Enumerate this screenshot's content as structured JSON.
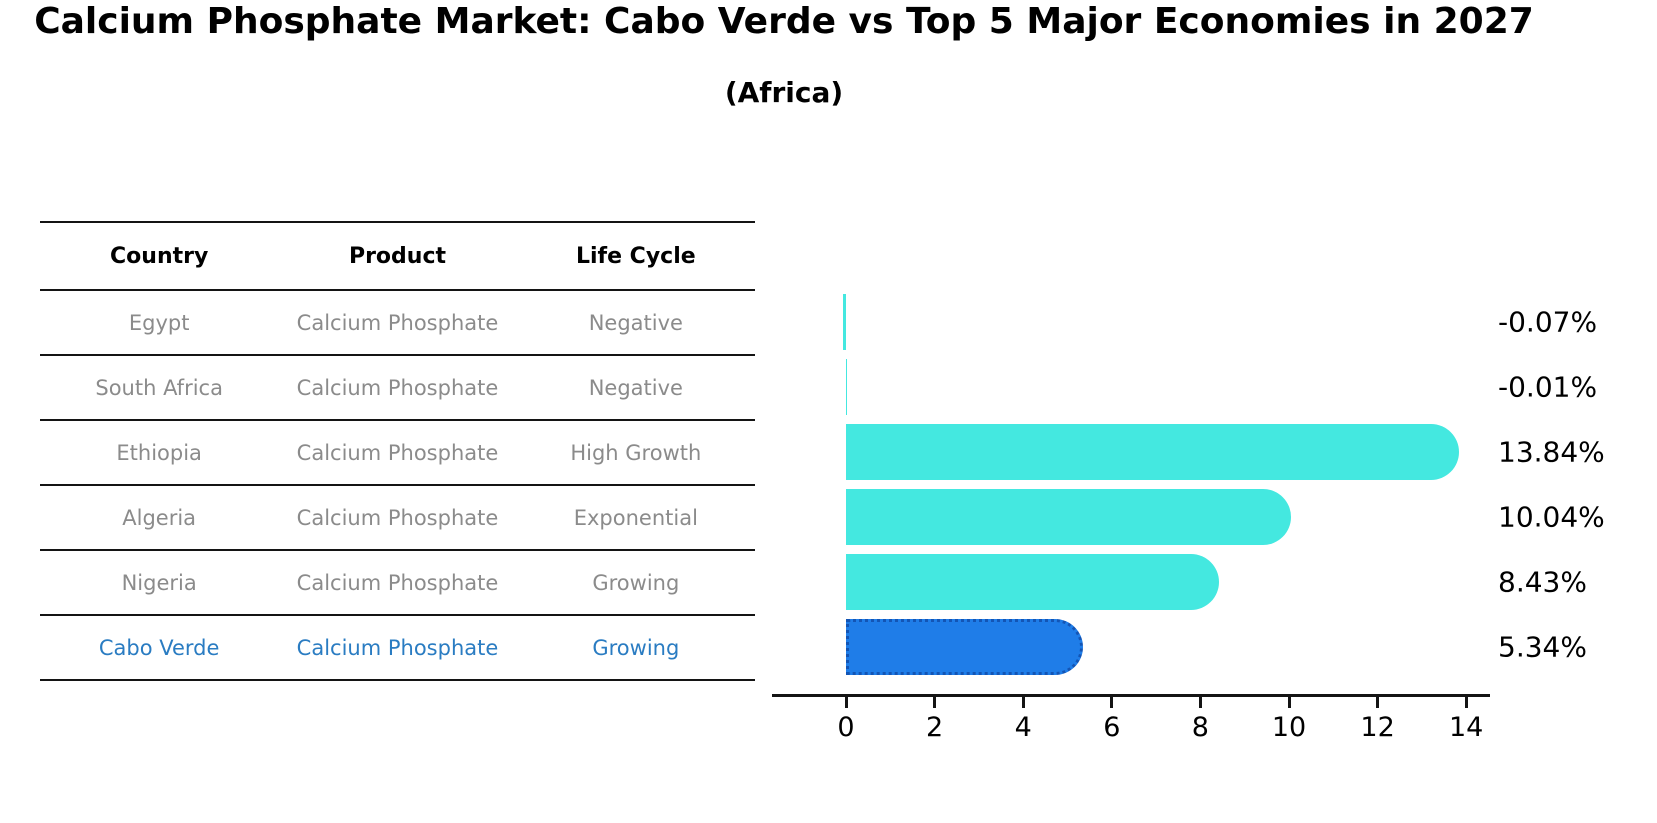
{
  "title": "Calcium Phosphate Market: Cabo Verde vs Top 5 Major Economies in 2027",
  "subtitle": "(Africa)",
  "table": {
    "headers": [
      "Country",
      "Product",
      "Life Cycle"
    ],
    "rows": [
      {
        "country": "Egypt",
        "product": "Calcium Phosphate",
        "life_cycle": "Negative"
      },
      {
        "country": "South Africa",
        "product": "Calcium Phosphate",
        "life_cycle": "Negative"
      },
      {
        "country": "Ethiopia",
        "product": "Calcium Phosphate",
        "life_cycle": "High Growth"
      },
      {
        "country": "Algeria",
        "product": "Calcium Phosphate",
        "life_cycle": "Exponential"
      },
      {
        "country": "Nigeria",
        "product": "Calcium Phosphate",
        "life_cycle": "Growing"
      },
      {
        "country": "Cabo Verde",
        "product": "Calcium Phosphate",
        "life_cycle": "Growing"
      }
    ],
    "highlight_row": "Cabo Verde"
  },
  "chart_data": {
    "type": "bar",
    "orientation": "horizontal",
    "categories": [
      "Egypt",
      "South Africa",
      "Ethiopia",
      "Algeria",
      "Nigeria",
      "Cabo Verde"
    ],
    "values": [
      -0.07,
      -0.01,
      13.84,
      10.04,
      8.43,
      5.34
    ],
    "value_labels": [
      "-0.07%",
      "-0.01%",
      "13.84%",
      "10.04%",
      "8.43%",
      "5.34%"
    ],
    "x_ticks": [
      0,
      2,
      4,
      6,
      8,
      10,
      12,
      14
    ],
    "xlim": [
      -1.7,
      14.55
    ],
    "grid": false,
    "legend": "none",
    "title": "Calcium Phosphate Market: Cabo Verde vs Top 5 Major Economies in 2027 (Africa)",
    "xlabel": "",
    "ylabel": "",
    "bar_color": "#44e8e0",
    "highlight_color": "#1f7de8",
    "highlight_border_color": "#1355b5",
    "highlight_index": 5
  }
}
